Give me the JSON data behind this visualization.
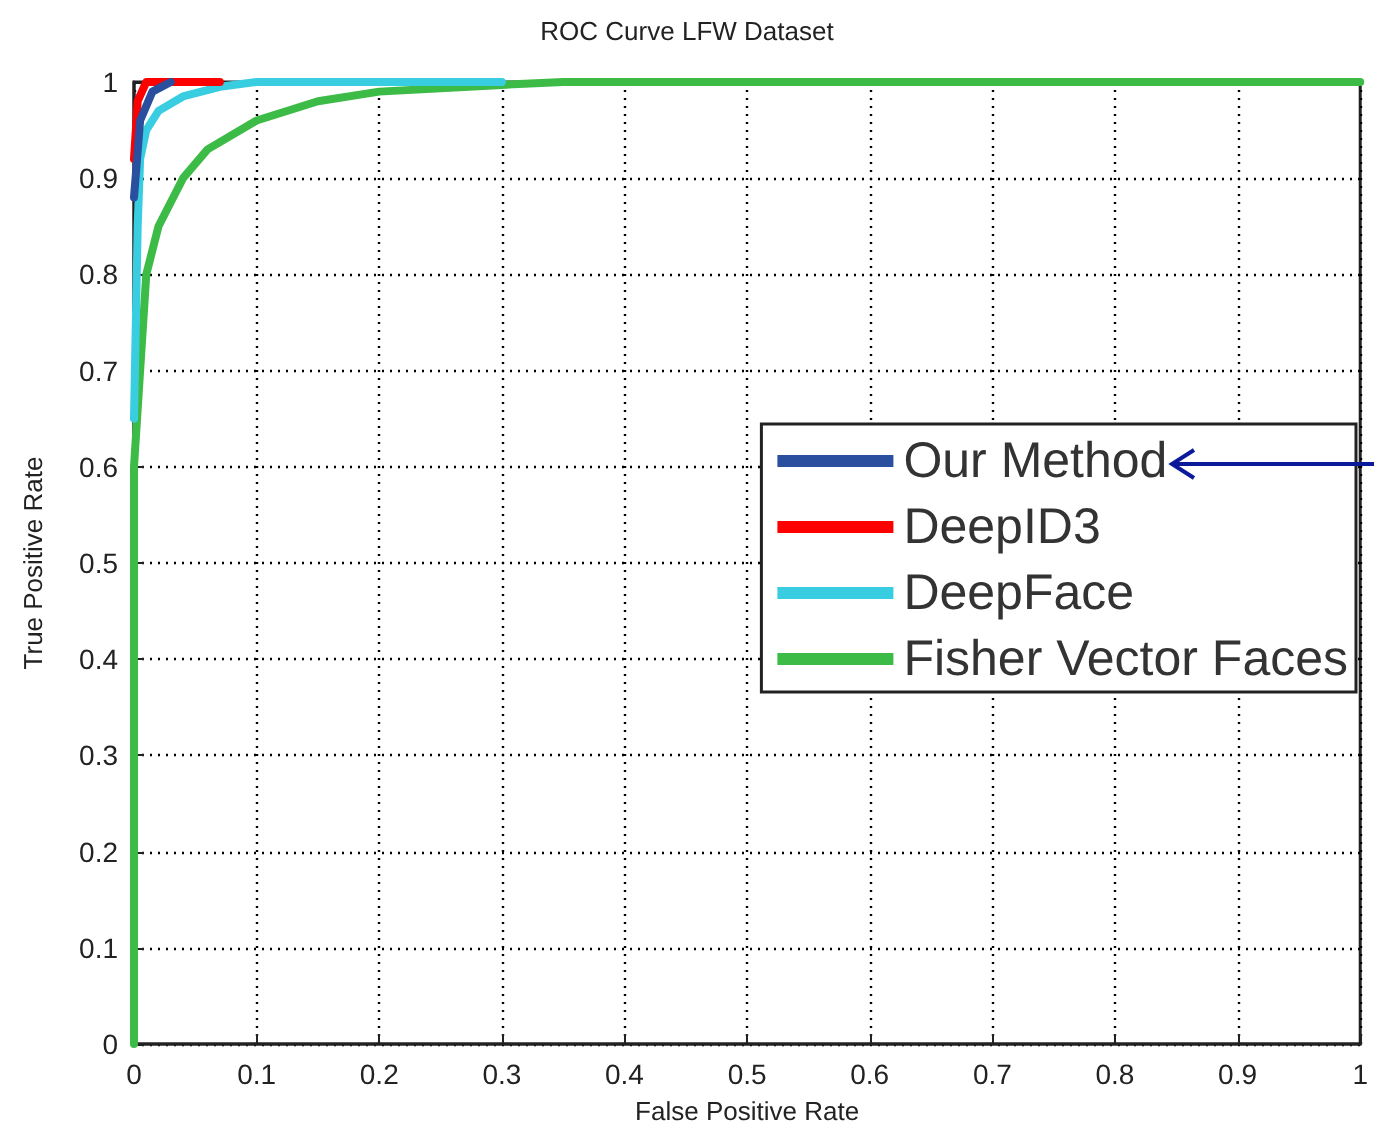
{
  "chart_data": {
    "type": "line",
    "title": "ROC Curve LFW Dataset",
    "xlabel": "False Positive Rate",
    "ylabel": "True Positive Rate",
    "xlim": [
      0,
      1
    ],
    "ylim": [
      0,
      1
    ],
    "xticks": [
      0,
      0.1,
      0.2,
      0.3,
      0.4,
      0.5,
      0.6,
      0.7,
      0.8,
      0.9,
      1
    ],
    "yticks": [
      0,
      0.1,
      0.2,
      0.3,
      0.4,
      0.5,
      0.6,
      0.7,
      0.8,
      0.9,
      1
    ],
    "grid": true,
    "legend": "right",
    "marker": "none",
    "line_style": "solid",
    "series": [
      {
        "name": "Our Method",
        "color": "#2a4f9e",
        "x": [
          0,
          0.005,
          0.015,
          0.03
        ],
        "values": [
          0.88,
          0.96,
          0.99,
          1
        ]
      },
      {
        "name": "DeepID3",
        "color": "#ff0000",
        "x": [
          0,
          0.003,
          0.01,
          0.07
        ],
        "values": [
          0.92,
          0.98,
          1,
          1
        ]
      },
      {
        "name": "DeepFace",
        "color": "#38cde0",
        "x": [
          0,
          0.003,
          0.005,
          0.01,
          0.02,
          0.04,
          0.07,
          0.1,
          0.3
        ],
        "values": [
          0.65,
          0.85,
          0.92,
          0.95,
          0.97,
          0.985,
          0.995,
          1,
          1
        ]
      },
      {
        "name": "Fisher Vector Faces",
        "color": "#3dbb47",
        "x": [
          0,
          0,
          0.005,
          0.01,
          0.02,
          0.04,
          0.06,
          0.1,
          0.15,
          0.2,
          0.3,
          0.35,
          1
        ],
        "values": [
          0,
          0.6,
          0.7,
          0.8,
          0.85,
          0.9,
          0.93,
          0.96,
          0.98,
          0.99,
          0.997,
          1,
          1
        ]
      }
    ]
  }
}
